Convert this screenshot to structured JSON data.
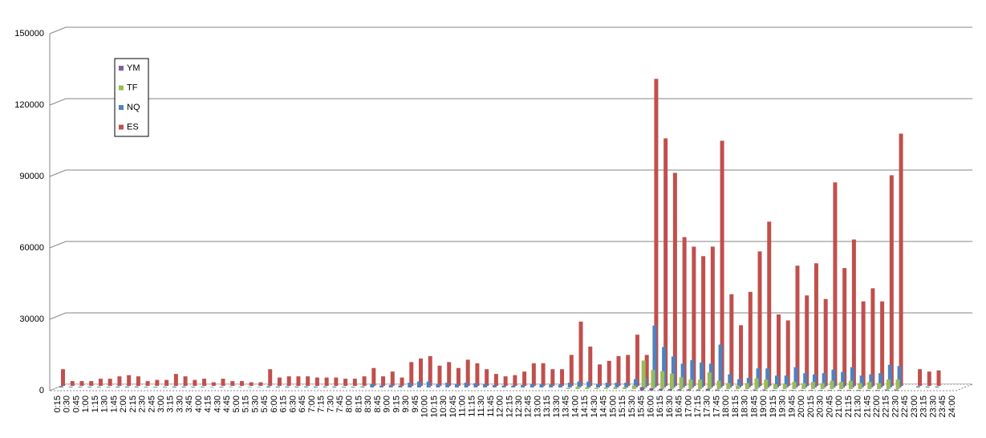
{
  "chart_data": {
    "type": "bar3d",
    "categories": [
      "0:15",
      "0:30",
      "0:45",
      "1:00",
      "1:15",
      "1:30",
      "1:45",
      "2:00",
      "2:15",
      "2:30",
      "2:45",
      "3:00",
      "3:15",
      "3:30",
      "3:45",
      "4:00",
      "4:15",
      "4:30",
      "4:45",
      "5:00",
      "5:15",
      "5:30",
      "5:45",
      "6:00",
      "6:15",
      "6:30",
      "6:45",
      "7:00",
      "7:15",
      "7:30",
      "7:45",
      "8:00",
      "8:15",
      "8:30",
      "8:45",
      "9:00",
      "9:15",
      "9:30",
      "9:45",
      "10:00",
      "10:15",
      "10:30",
      "10:45",
      "11:00",
      "11:15",
      "11:30",
      "11:45",
      "12:00",
      "12:15",
      "12:30",
      "12:45",
      "13:00",
      "13:15",
      "13:30",
      "13:45",
      "14:00",
      "14:15",
      "14:30",
      "14:45",
      "15:00",
      "15:15",
      "15:30",
      "15:45",
      "16:00",
      "16:15",
      "16:30",
      "16:45",
      "17:00",
      "17:15",
      "17:30",
      "17:45",
      "18:00",
      "18:15",
      "18:30",
      "18:45",
      "19:00",
      "19:15",
      "19:30",
      "19:45",
      "20:00",
      "20:15",
      "20:30",
      "20:45",
      "21:00",
      "21:15",
      "21:30",
      "21:45",
      "22:00",
      "22:15",
      "22:30",
      "22:45",
      "23:00",
      "23:15",
      "23:30",
      "23:45",
      "24:00"
    ],
    "series": [
      {
        "name": "YM",
        "color": "#7f5ea8",
        "values": [
          0,
          0,
          0,
          0,
          0,
          0,
          0,
          0,
          0,
          0,
          0,
          0,
          0,
          0,
          0,
          0,
          0,
          0,
          0,
          0,
          0,
          0,
          0,
          0,
          0,
          0,
          0,
          0,
          0,
          0,
          0,
          0,
          0,
          0,
          0,
          0,
          0,
          0,
          0,
          0,
          0,
          0,
          0,
          0,
          0,
          0,
          0,
          0,
          0,
          0,
          0,
          0,
          0,
          0,
          0,
          0,
          0,
          0,
          0,
          0,
          0,
          200,
          1500,
          1000,
          800,
          700,
          600,
          600,
          500,
          800,
          500,
          300,
          200,
          300,
          500,
          500,
          300,
          300,
          300,
          300,
          300,
          300,
          300,
          300,
          300,
          300,
          300,
          300,
          500,
          500,
          0,
          0,
          0,
          0,
          0,
          0
        ]
      },
      {
        "name": "TF",
        "color": "#9bbb59",
        "values": [
          0,
          0,
          0,
          0,
          0,
          0,
          0,
          0,
          0,
          0,
          0,
          0,
          0,
          0,
          0,
          0,
          0,
          0,
          0,
          0,
          0,
          0,
          0,
          0,
          0,
          0,
          0,
          0,
          0,
          0,
          0,
          0,
          0,
          0,
          0,
          0,
          0,
          0,
          0,
          0,
          0,
          0,
          0,
          0,
          0,
          0,
          0,
          0,
          0,
          0,
          0,
          0,
          0,
          0,
          500,
          1000,
          800,
          500,
          600,
          800,
          800,
          1500,
          12000,
          8000,
          7500,
          6500,
          5000,
          4000,
          4000,
          7000,
          3500,
          2500,
          1500,
          2500,
          4500,
          4000,
          2000,
          2000,
          3000,
          2500,
          3000,
          2500,
          3500,
          3000,
          3500,
          2500,
          3000,
          2500,
          4000,
          4000,
          0,
          0,
          0,
          0,
          0,
          0
        ]
      },
      {
        "name": "NQ",
        "color": "#4f81bd",
        "values": [
          500,
          300,
          300,
          300,
          300,
          300,
          400,
          400,
          400,
          300,
          300,
          300,
          400,
          400,
          300,
          300,
          200,
          300,
          200,
          200,
          200,
          200,
          500,
          400,
          400,
          400,
          400,
          400,
          400,
          400,
          300,
          300,
          400,
          1500,
          800,
          1000,
          800,
          2000,
          2500,
          2500,
          1500,
          2000,
          1500,
          2000,
          1800,
          1500,
          1000,
          800,
          800,
          1000,
          1500,
          1500,
          1200,
          1200,
          2000,
          2500,
          2500,
          1500,
          2000,
          2000,
          2000,
          3500,
          4000,
          26000,
          17000,
          13000,
          10000,
          11500,
          10500,
          10000,
          18000,
          5500,
          3500,
          4000,
          8000,
          8000,
          5000,
          5000,
          8500,
          6000,
          5500,
          6000,
          7500,
          6500,
          8500,
          5000,
          5500,
          6000,
          9500,
          9000,
          0,
          500,
          400,
          400,
          0,
          0
        ]
      },
      {
        "name": "ES",
        "color": "#c0504d",
        "values": [
          7000,
          2000,
          2000,
          2000,
          3000,
          3000,
          4000,
          4500,
          4000,
          2000,
          2500,
          2500,
          5000,
          4000,
          2500,
          3000,
          1500,
          3000,
          2000,
          2000,
          1500,
          1500,
          7000,
          3500,
          4000,
          4000,
          4000,
          3500,
          3500,
          3500,
          3000,
          3000,
          4000,
          7500,
          4000,
          6000,
          3500,
          10000,
          11500,
          12500,
          8500,
          10000,
          7500,
          11000,
          9500,
          7000,
          5000,
          4000,
          4500,
          6000,
          9500,
          9500,
          7000,
          7000,
          13000,
          27000,
          16500,
          9000,
          10500,
          12500,
          13000,
          21500,
          13000,
          129000,
          104000,
          89500,
          62500,
          58500,
          54500,
          58500,
          103000,
          38500,
          25500,
          39500,
          56500,
          69000,
          30000,
          27500,
          50500,
          38000,
          51500,
          36500,
          85500,
          49500,
          61500,
          35500,
          41000,
          35500,
          88500,
          106000,
          0,
          7000,
          6000,
          6500,
          0,
          0
        ]
      }
    ],
    "ylim": [
      0,
      150000
    ],
    "yticks": [
      0,
      30000,
      60000,
      90000,
      120000,
      150000
    ],
    "grid": true
  }
}
